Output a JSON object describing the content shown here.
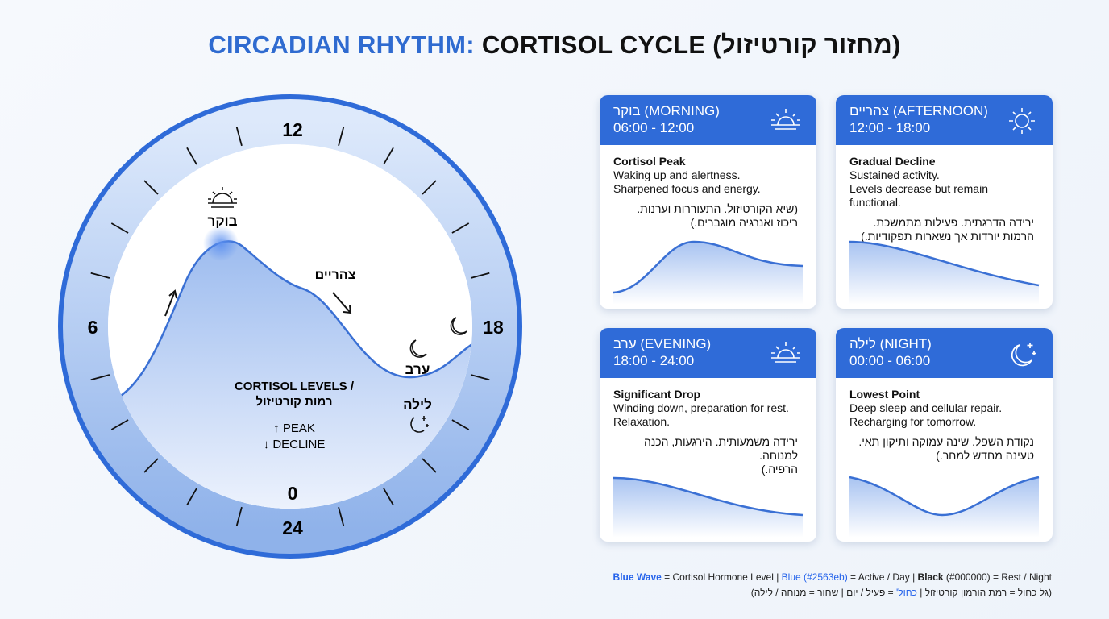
{
  "title": {
    "accent": "CIRCADIAN RHYTHM:",
    "main": "CORTISOL CYCLE (מחזור קורטיזול)"
  },
  "clock": {
    "hours": {
      "top": "12",
      "left": "6",
      "right": "18",
      "inner_bottom": "0",
      "bottom": "24"
    },
    "labels": {
      "morning": "בוקר",
      "afternoon": "צהריים",
      "evening": "ערב",
      "night": "לילה"
    },
    "center": {
      "title": "CORTISOL LEVELS /",
      "title_he": "רמות קורטיזול",
      "peak": "↑ PEAK",
      "decline": "↓ DECLINE"
    }
  },
  "cards": [
    {
      "title": "בוקר (MORNING)",
      "time": "06:00 - 12:00",
      "heading": "Cortisol Peak",
      "lines": [
        "Waking up and alertness.",
        "Sharpened focus and energy."
      ],
      "hebrew": [
        "(שיא הקורטיזול. התעוררות וערנות.",
        "ריכוז ואנרגיה מוגברים.)"
      ]
    },
    {
      "title": "צהריים (AFTERNOON)",
      "time": "12:00 - 18:00",
      "heading": "Gradual Decline",
      "lines": [
        "Sustained activity.",
        "Levels decrease but remain functional."
      ],
      "hebrew": [
        "ירידה הדרגתית. פעילות מתמשכת.",
        "הרמות יורדות אך נשארות תפקודיות.)"
      ]
    },
    {
      "title": "ערב (EVENING)",
      "time": "18:00 - 24:00",
      "heading": "Significant Drop",
      "lines": [
        "Winding down, preparation for rest.",
        "Relaxation."
      ],
      "hebrew": [
        "ירידה משמעותית. הירגעות, הכנה למנוחה.",
        "הרפיה.)"
      ]
    },
    {
      "title": "לילה (NIGHT)",
      "time": "00:00 - 06:00",
      "heading": "Lowest Point",
      "lines": [
        "Deep sleep and cellular repair.",
        "Recharging for tomorrow."
      ],
      "hebrew": [
        "נקודת השפל. שינה עמוקה ותיקון תאי.",
        "טעינה מחדש למחר.)"
      ]
    }
  ],
  "legend": {
    "line1": [
      {
        "text": "Blue Wave",
        "style": "blue"
      },
      {
        "text": " = Cortisol Hormone Level | ",
        "style": "plain"
      },
      {
        "text": "Blue (#2563eb)",
        "style": "blue"
      },
      {
        "text": " = Active / Day | ",
        "style": "plain"
      },
      {
        "text": "Black",
        "style": "bold"
      },
      {
        "text": " (#000000) = Rest / Night",
        "style": "plain"
      }
    ],
    "line2": [
      {
        "text": "(גל כחול = רמת הורמון קורטיזול | ",
        "style": "plain"
      },
      {
        "text": "כחול'",
        "style": "blue"
      },
      {
        "text": " = פעיל / יום | שחור = מנוחה / לילה)",
        "style": "plain"
      }
    ]
  }
}
